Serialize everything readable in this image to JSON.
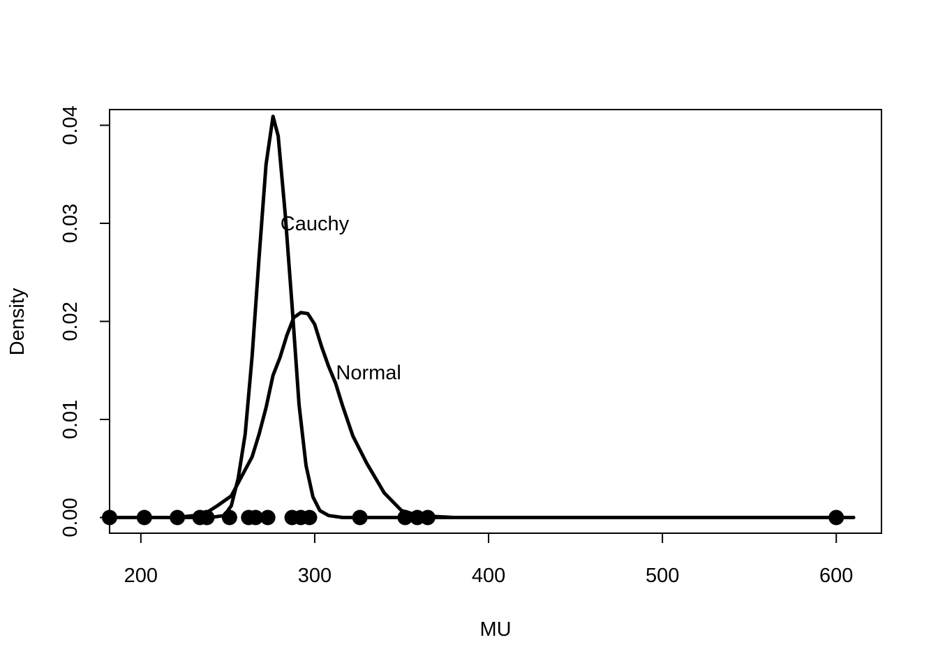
{
  "chart_data": {
    "type": "line",
    "title": "",
    "xlabel": "MU",
    "ylabel": "Density",
    "xlim": [
      182,
      626
    ],
    "ylim": [
      -0.0016,
      0.0416
    ],
    "grid": false,
    "legend": "none",
    "x_ticks": [
      200,
      300,
      400,
      500,
      600
    ],
    "x_tick_labels": [
      "200",
      "300",
      "400",
      "500",
      "600"
    ],
    "y_ticks": [
      0.0,
      0.01,
      0.02,
      0.03,
      0.04
    ],
    "y_tick_labels": [
      "0.00",
      "0.01",
      "0.02",
      "0.03",
      "0.04"
    ],
    "series": [
      {
        "style": "line",
        "color": "#000000",
        "x": [
          182,
          220,
          240,
          248,
          252,
          256,
          260,
          264,
          268,
          272,
          276,
          279,
          283,
          287,
          291,
          295,
          299,
          303,
          308,
          316,
          330,
          360,
          380
        ],
        "y": [
          0.0,
          0.0,
          0.0,
          0.0002,
          0.0012,
          0.004,
          0.0085,
          0.0165,
          0.0265,
          0.036,
          0.0409,
          0.0389,
          0.031,
          0.0215,
          0.0115,
          0.0053,
          0.0021,
          0.0007,
          0.0002,
          0.0,
          0.0,
          0.0,
          0.0
        ]
      },
      {
        "style": "line",
        "color": "#000000",
        "x": [
          182,
          220,
          236,
          244,
          252,
          258,
          264,
          268,
          272,
          276,
          280,
          284,
          288,
          292,
          296,
          300,
          304,
          308,
          312,
          316,
          322,
          330,
          340,
          350,
          360,
          380,
          450,
          550,
          610
        ],
        "y": [
          0.0,
          0.0,
          0.0003,
          0.0012,
          0.0022,
          0.0042,
          0.0062,
          0.0085,
          0.0112,
          0.0145,
          0.0163,
          0.0186,
          0.0204,
          0.0209,
          0.0208,
          0.0197,
          0.0174,
          0.0154,
          0.0137,
          0.0114,
          0.0083,
          0.0055,
          0.0025,
          0.0007,
          0.0002,
          0.0,
          0.0,
          0.0,
          0.0
        ]
      },
      {
        "style": "points",
        "color": "#000000",
        "x": [
          182,
          202,
          221,
          234,
          238,
          251,
          262,
          266,
          273,
          287,
          292,
          297,
          326,
          352,
          359,
          365,
          600
        ],
        "y": [
          0,
          0,
          0,
          0,
          0,
          0,
          0,
          0,
          0,
          0,
          0,
          0,
          0,
          0,
          0,
          0,
          0
        ]
      }
    ],
    "annotations": [
      {
        "text": "Cauchy",
        "x": 300,
        "y": 0.03
      },
      {
        "text": "Normal",
        "x": 331,
        "y": 0.0148
      }
    ]
  }
}
